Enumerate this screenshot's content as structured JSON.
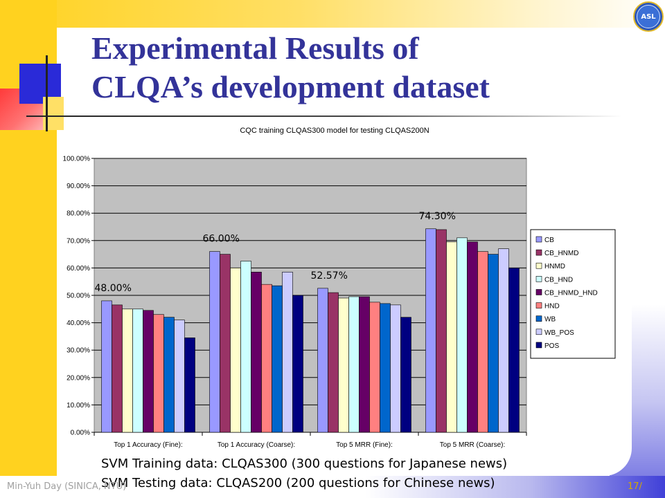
{
  "slide": {
    "title_line1": "Experimental Results of",
    "title_line2": "CLQA’s development dataset",
    "logo_text": "ASL",
    "caption_training": "SVM Training data: CLQAS300 (300 questions for Japanese news)",
    "caption_testing": "SVM Testing data: CLQAS200 (200 questions for Chinese news)",
    "footer_author": "Min-Yuh Day (SINICA, NTU)",
    "footer_page": "17/"
  },
  "chart_data": {
    "type": "bar",
    "title": "CQC training CLQAS300 model for testing CLQAS200N",
    "categories": [
      "Top 1 Accuracy (Fine):",
      "Top 1 Accuracy (Coarse):",
      "Top 5 MRR (Fine):",
      "Top 5 MRR (Coarse):"
    ],
    "ylim": [
      0,
      1.0
    ],
    "yticks": [
      "0.00%",
      "10.00%",
      "20.00%",
      "30.00%",
      "40.00%",
      "50.00%",
      "60.00%",
      "70.00%",
      "80.00%",
      "90.00%",
      "100.00%"
    ],
    "grid": true,
    "legend_position": "right",
    "series": [
      {
        "name": "CB",
        "color": "#9999ff",
        "values": [
          0.48,
          0.66,
          0.5257,
          0.743
        ]
      },
      {
        "name": "CB_HNMD",
        "color": "#993366",
        "values": [
          0.465,
          0.65,
          0.51,
          0.74
        ]
      },
      {
        "name": "HNMD",
        "color": "#ffffcc",
        "values": [
          0.45,
          0.6,
          0.49,
          0.695
        ]
      },
      {
        "name": "CB_HND",
        "color": "#ccffff",
        "values": [
          0.45,
          0.625,
          0.495,
          0.71
        ]
      },
      {
        "name": "CB_HNMD_HND",
        "color": "#660066",
        "values": [
          0.445,
          0.585,
          0.495,
          0.695
        ]
      },
      {
        "name": "HND",
        "color": "#ff8080",
        "values": [
          0.43,
          0.54,
          0.475,
          0.66
        ]
      },
      {
        "name": "WB",
        "color": "#0066cc",
        "values": [
          0.42,
          0.535,
          0.47,
          0.65
        ]
      },
      {
        "name": "WB_POS",
        "color": "#ccccff",
        "values": [
          0.41,
          0.585,
          0.465,
          0.67
        ]
      },
      {
        "name": "POS",
        "color": "#000080",
        "values": [
          0.345,
          0.5,
          0.42,
          0.6
        ]
      }
    ],
    "annotations": [
      {
        "category": 0,
        "text": "48.00%"
      },
      {
        "category": 1,
        "text": "66.00%"
      },
      {
        "category": 2,
        "text": "52.57%"
      },
      {
        "category": 3,
        "text": "74.30%"
      }
    ]
  }
}
